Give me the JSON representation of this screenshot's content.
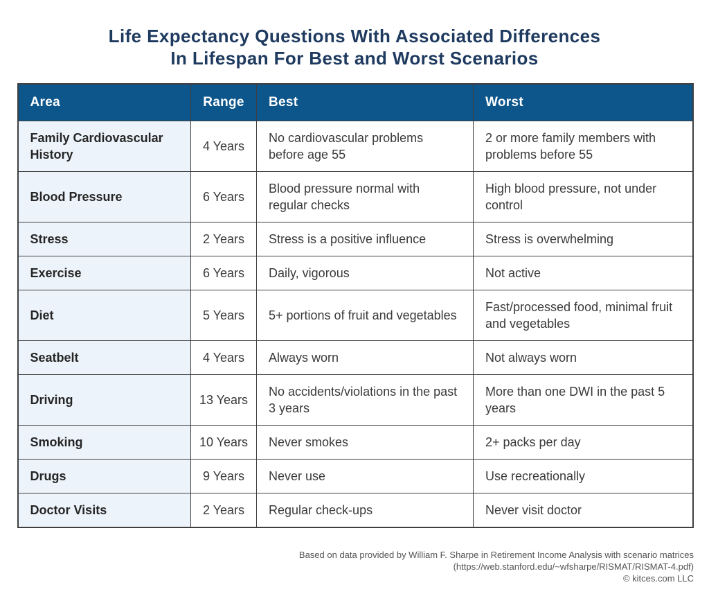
{
  "title": {
    "line1": "Life Expectancy Questions With Associated Differences",
    "line2": "In Lifespan For Best and Worst Scenarios"
  },
  "colors": {
    "header_bg": "#0D568C",
    "area_column_bg": "#EDF3FA",
    "title_text": "#1E3A5F",
    "border": "#3E3E3E",
    "body_text": "#3A3A3A",
    "footer_text": "#545454"
  },
  "chart_data": {
    "type": "table",
    "title": "Life Expectancy Questions With Associated Differences In Lifespan For Best and Worst Scenarios",
    "columns": [
      "Area",
      "Range",
      "Best",
      "Worst"
    ],
    "rows": [
      [
        "Family Cardiovascular History",
        "4 Years",
        "No cardiovascular problems before age 55",
        "2 or more family members with problems before 55"
      ],
      [
        "Blood Pressure",
        "6 Years",
        "Blood pressure normal with regular checks",
        "High blood pressure, not under control"
      ],
      [
        "Stress",
        "2 Years",
        "Stress is a positive influence",
        "Stress is overwhelming"
      ],
      [
        "Exercise",
        "6 Years",
        "Daily, vigorous",
        "Not active"
      ],
      [
        "Diet",
        "5 Years",
        "5+ portions of fruit and vegetables",
        "Fast/processed food, minimal fruit and vegetables"
      ],
      [
        "Seatbelt",
        "4 Years",
        "Always worn",
        "Not always worn"
      ],
      [
        "Driving",
        "13 Years",
        "No accidents/violations in the past 3 years",
        "More than one DWI in the past 5 years"
      ],
      [
        "Smoking",
        "10 Years",
        "Never smokes",
        "2+ packs per day"
      ],
      [
        "Drugs",
        "9 Years",
        "Never use",
        "Use recreationally"
      ],
      [
        "Doctor Visits",
        "2 Years",
        "Regular check-ups",
        "Never visit doctor"
      ]
    ],
    "range_years": {
      "Family Cardiovascular History": 4,
      "Blood Pressure": 6,
      "Stress": 2,
      "Exercise": 6,
      "Diet": 5,
      "Seatbelt": 4,
      "Driving": 13,
      "Smoking": 10,
      "Drugs": 9,
      "Doctor Visits": 2
    }
  },
  "footer": {
    "line1": "Based on data provided by William F. Sharpe in Retirement Income Analysis with scenario matrices",
    "line2": "(https://web.stanford.edu/~wfsharpe/RISMAT/RISMAT-4.pdf)",
    "line3": "© kitces.com LLC"
  }
}
